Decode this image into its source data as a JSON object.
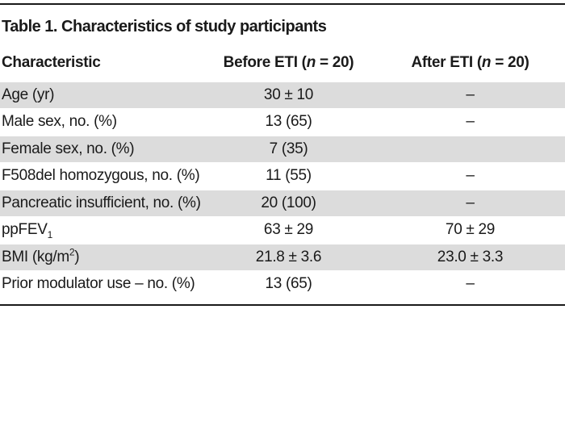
{
  "colors": {
    "text": "#1a1a1a",
    "row_alt": "#dcdcdc",
    "rule": "#1a1a1a",
    "background": "#ffffff"
  },
  "table": {
    "title": "Table 1. Characteristics of study participants",
    "columns": [
      {
        "label": "Characteristic"
      },
      {
        "prefix": "Before ETI (",
        "n_symbol": "n",
        "suffix": " = 20)"
      },
      {
        "prefix": "After ETI (",
        "n_symbol": "n",
        "suffix": " = 20)"
      }
    ],
    "rows": [
      {
        "label": "Age (yr)",
        "before": "30 ± 10",
        "after": "–"
      },
      {
        "label": "Male sex, no. (%)",
        "before": "13 (65)",
        "after": "–"
      },
      {
        "label": "Female sex, no. (%)",
        "before": "7 (35)",
        "after": ""
      },
      {
        "label": "F508del homozygous, no. (%)",
        "before": "11 (55)",
        "after": "–"
      },
      {
        "label": "Pancreatic insufficient, no. (%)",
        "before": "20 (100)",
        "after": "–"
      },
      {
        "label": "ppFEV",
        "label_sub": "1",
        "before": "63 ± 29",
        "after": "70 ± 29"
      },
      {
        "label": "BMI (kg/m",
        "label_sup": "2",
        "label_suffix": ")",
        "before": "21.8 ± 3.6",
        "after": "23.0 ± 3.3"
      },
      {
        "label": "Prior modulator use – no. (%)",
        "before": "13 (65)",
        "after": "–"
      }
    ]
  }
}
